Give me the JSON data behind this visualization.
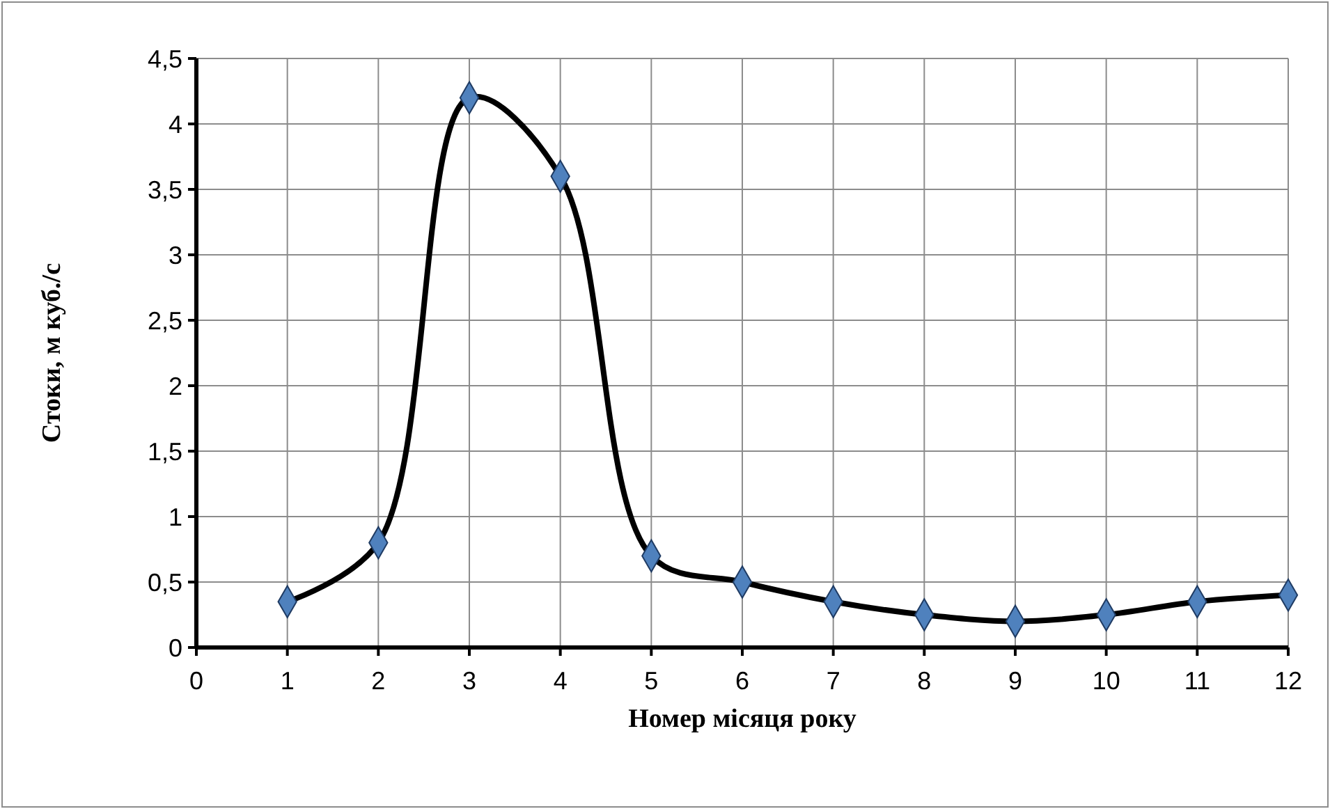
{
  "chart_data": {
    "type": "line",
    "xlabel": "Номер місяця року",
    "ylabel": "Стоки, м куб./с",
    "x": [
      1,
      2,
      3,
      4,
      5,
      6,
      7,
      8,
      9,
      10,
      11,
      12
    ],
    "series": [
      {
        "color": "#000000",
        "values": [
          0.35,
          0.8,
          4.2,
          3.6,
          0.7,
          0.5,
          0.35,
          0.25,
          0.2,
          0.25,
          0.35,
          0.4
        ]
      }
    ],
    "marker": "diamond",
    "line_style": "solid",
    "grid": true,
    "xlim": [
      0,
      12
    ],
    "xticks": [
      0,
      1,
      2,
      3,
      4,
      5,
      6,
      7,
      8,
      9,
      10,
      11,
      12
    ],
    "ylim": [
      0,
      4.5
    ],
    "yticks": [
      0,
      {
        "value": 0.5,
        "label": "0,5"
      },
      1,
      {
        "value": 1.5,
        "label": "1,5"
      },
      2,
      {
        "value": 2.5,
        "label": "2,5"
      },
      3,
      {
        "value": 3.5,
        "label": "3,5"
      },
      4,
      {
        "value": 4.5,
        "label": "4,5"
      }
    ]
  }
}
